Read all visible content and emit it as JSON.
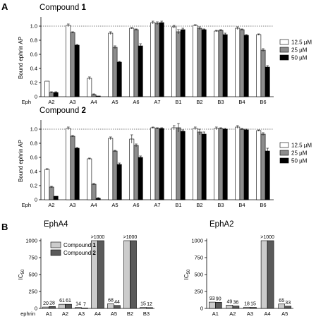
{
  "panels": {
    "a": "A",
    "b": "B"
  },
  "colors": {
    "s0": "#ffffff",
    "s1": "#8c8c8c",
    "s2": "#000000",
    "b0": "#cccccc",
    "b1": "#5a5a5a"
  },
  "chart_data": [
    {
      "type": "bar",
      "title_prefix": "Compound ",
      "title_bold": "1",
      "ylabel": "Bound ephrin AP",
      "xlabel": "Eph",
      "ylim": [
        0,
        1.1
      ],
      "yticks": [
        "0",
        "0.2",
        "0.4",
        "0.6",
        "0.8",
        "1.0"
      ],
      "reference_line": 1.0,
      "categories": [
        "A2",
        "A3",
        "A4",
        "A5",
        "A6",
        "A7",
        "B1",
        "B2",
        "B3",
        "B4",
        "B6"
      ],
      "series": [
        {
          "name": "12.5 µM",
          "values": [
            0.22,
            1.01,
            0.26,
            0.9,
            0.97,
            1.05,
            0.99,
            1.01,
            0.93,
            0.97,
            0.88
          ],
          "errors": [
            0.0,
            0.02,
            0.02,
            0.02,
            0.01,
            0.02,
            0.02,
            0.01,
            0.01,
            0.02,
            0.01
          ]
        },
        {
          "name": "25 µM",
          "values": [
            0.06,
            0.91,
            0.03,
            0.7,
            0.95,
            1.04,
            0.92,
            0.97,
            0.94,
            0.95,
            0.66
          ],
          "errors": [
            0.01,
            0.01,
            0.01,
            0.02,
            0.01,
            0.02,
            0.03,
            0.02,
            0.01,
            0.01,
            0.02
          ]
        },
        {
          "name": "50 µM",
          "values": [
            0.06,
            0.73,
            0.01,
            0.49,
            0.72,
            1.05,
            0.95,
            0.95,
            0.88,
            0.87,
            0.42
          ],
          "errors": [
            0.01,
            0.01,
            0.0,
            0.01,
            0.03,
            0.02,
            0.02,
            0.01,
            0.02,
            0.01,
            0.02
          ]
        }
      ],
      "legend": "right"
    },
    {
      "type": "bar",
      "title_prefix": "Compound ",
      "title_bold": "2",
      "ylabel": "Bound ephrin AP",
      "xlabel": "Eph",
      "ylim": [
        0,
        1.1
      ],
      "yticks": [
        "0",
        "0.2",
        "0.4",
        "0.6",
        "0.8",
        "1.0"
      ],
      "reference_line": 1.0,
      "categories": [
        "A2",
        "A3",
        "A4",
        "A5",
        "A6",
        "A7",
        "B1",
        "B2",
        "B3",
        "B4",
        "B6"
      ],
      "series": [
        {
          "name": "12.5 µM",
          "values": [
            0.43,
            1.01,
            0.58,
            0.87,
            0.86,
            1.02,
            1.02,
            1.01,
            1.01,
            1.03,
            0.98
          ],
          "errors": [
            0.01,
            0.02,
            0.01,
            0.02,
            0.06,
            0.01,
            0.03,
            0.02,
            0.02,
            0.02,
            0.01
          ]
        },
        {
          "name": "25 µM",
          "values": [
            0.18,
            0.9,
            0.22,
            0.69,
            0.77,
            1.01,
            1.02,
            0.96,
            1.01,
            1.0,
            0.93
          ],
          "errors": [
            0.01,
            0.01,
            0.01,
            0.01,
            0.02,
            0.01,
            0.06,
            0.04,
            0.01,
            0.01,
            0.02
          ]
        },
        {
          "name": "50 µM",
          "values": [
            0.05,
            0.73,
            0.02,
            0.5,
            0.6,
            1.01,
            0.97,
            0.93,
            1.0,
            0.99,
            0.69
          ],
          "errors": [
            0.0,
            0.01,
            0.01,
            0.02,
            0.02,
            0.01,
            0.02,
            0.03,
            0.01,
            0.01,
            0.04
          ]
        }
      ],
      "legend": "right"
    },
    {
      "type": "bar",
      "title": "EphA4",
      "ylabel_main": "IC",
      "ylabel_sub": "50",
      "xlabel": "ephrin",
      "ylim": [
        0,
        1000
      ],
      "yticks": [
        "0",
        "250",
        "500",
        "750",
        "1000"
      ],
      "categories": [
        "A1",
        "A2",
        "A3",
        "A4",
        "A5",
        "B2",
        "B3"
      ],
      "series": [
        {
          "name_prefix": "Compound ",
          "name_bold": "1",
          "values": [
            20,
            61,
            14,
            1000,
            68,
            1000,
            15
          ],
          "labels": [
            "20",
            "61",
            "14",
            ">1000",
            "68",
            ">1000",
            "15"
          ]
        },
        {
          "name_prefix": "Compound ",
          "name_bold": "2",
          "values": [
            28,
            61,
            7,
            1000,
            44,
            1000,
            12
          ],
          "labels": [
            "28",
            "61",
            "7",
            "",
            "44",
            "",
            "12"
          ]
        }
      ],
      "legend": "top-left"
    },
    {
      "type": "bar",
      "title": "EphA2",
      "ylabel_main": "IC",
      "ylabel_sub": "50",
      "ylim": [
        0,
        1000
      ],
      "yticks": [
        "0",
        "250",
        "500",
        "750",
        "1000"
      ],
      "categories": [
        "A1",
        "A2",
        "A3",
        "A4",
        "A5"
      ],
      "series": [
        {
          "values": [
            93,
            49,
            18,
            1000,
            65
          ],
          "labels": [
            "93",
            "49",
            "18",
            ">1000",
            "65"
          ]
        },
        {
          "values": [
            90,
            36,
            15,
            1000,
            33
          ],
          "labels": [
            "90",
            "36",
            "15",
            "",
            "33"
          ]
        }
      ]
    }
  ]
}
